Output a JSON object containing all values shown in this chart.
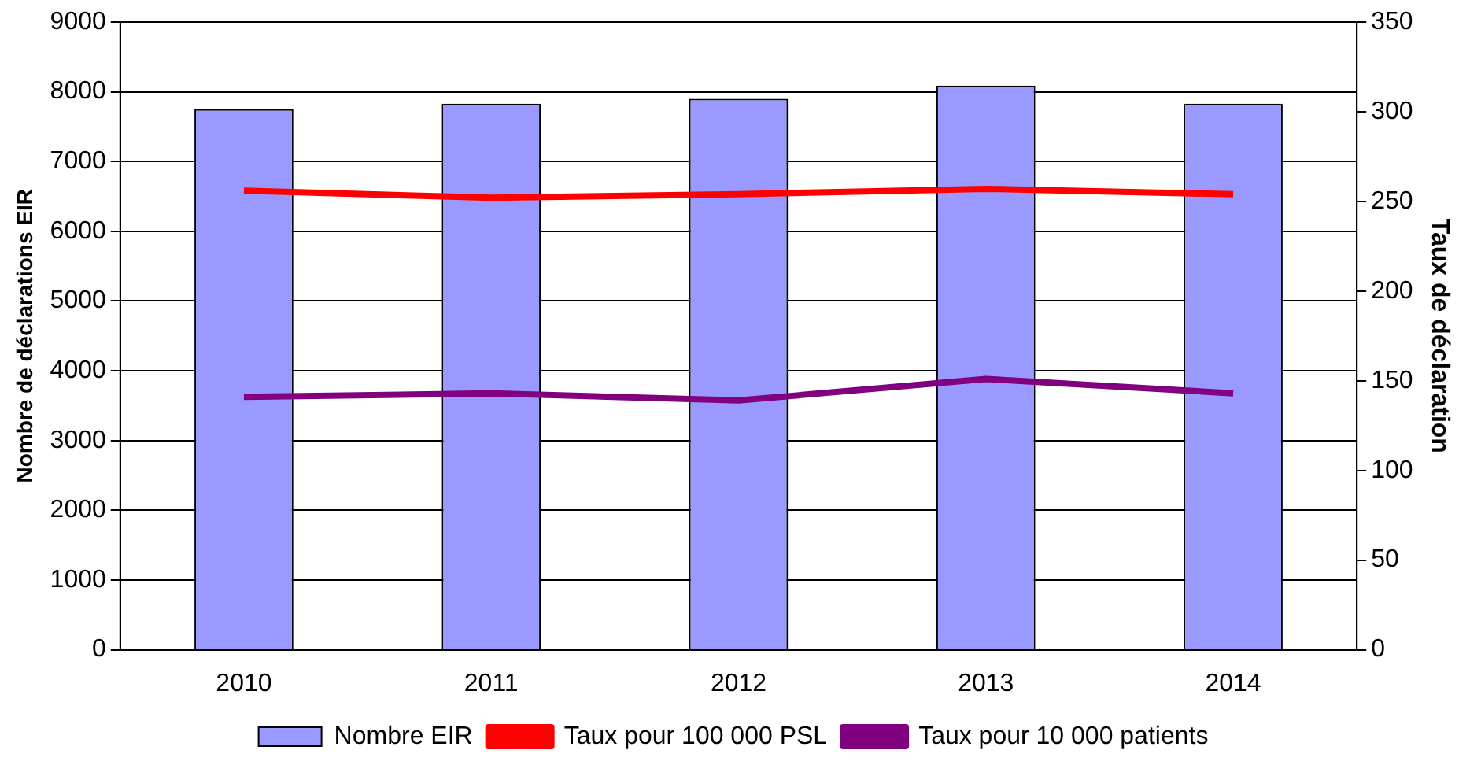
{
  "chart_data": {
    "type": "bar",
    "categories": [
      "2010",
      "2011",
      "2012",
      "2013",
      "2014"
    ],
    "ylabel": "Nombre de déclarations EIR",
    "y2label": "Taux de déclaration",
    "series": [
      {
        "name": "Nombre EIR",
        "color": "#9999ff",
        "values": [
          7750,
          7830,
          7900,
          8090,
          7830
        ]
      },
      {
        "name": "Taux pour 100 000 PSL",
        "type": "line",
        "axis": "y2",
        "color": "#ff0000",
        "values": [
          256,
          252,
          254,
          257,
          254
        ]
      },
      {
        "name": "Taux pour 10 000 patients",
        "type": "line",
        "axis": "y2",
        "color": "#800080",
        "values": [
          141,
          143,
          139,
          151,
          143
        ]
      }
    ],
    "ylim": [
      0,
      9000
    ],
    "yticks": [
      0,
      1000,
      2000,
      3000,
      4000,
      5000,
      6000,
      7000,
      8000,
      9000
    ],
    "y2lim": [
      0,
      350
    ],
    "y2ticks": [
      0,
      50,
      100,
      150,
      200,
      250,
      300,
      350
    ],
    "grid": "y",
    "legend": "bottom",
    "marker": "none"
  }
}
